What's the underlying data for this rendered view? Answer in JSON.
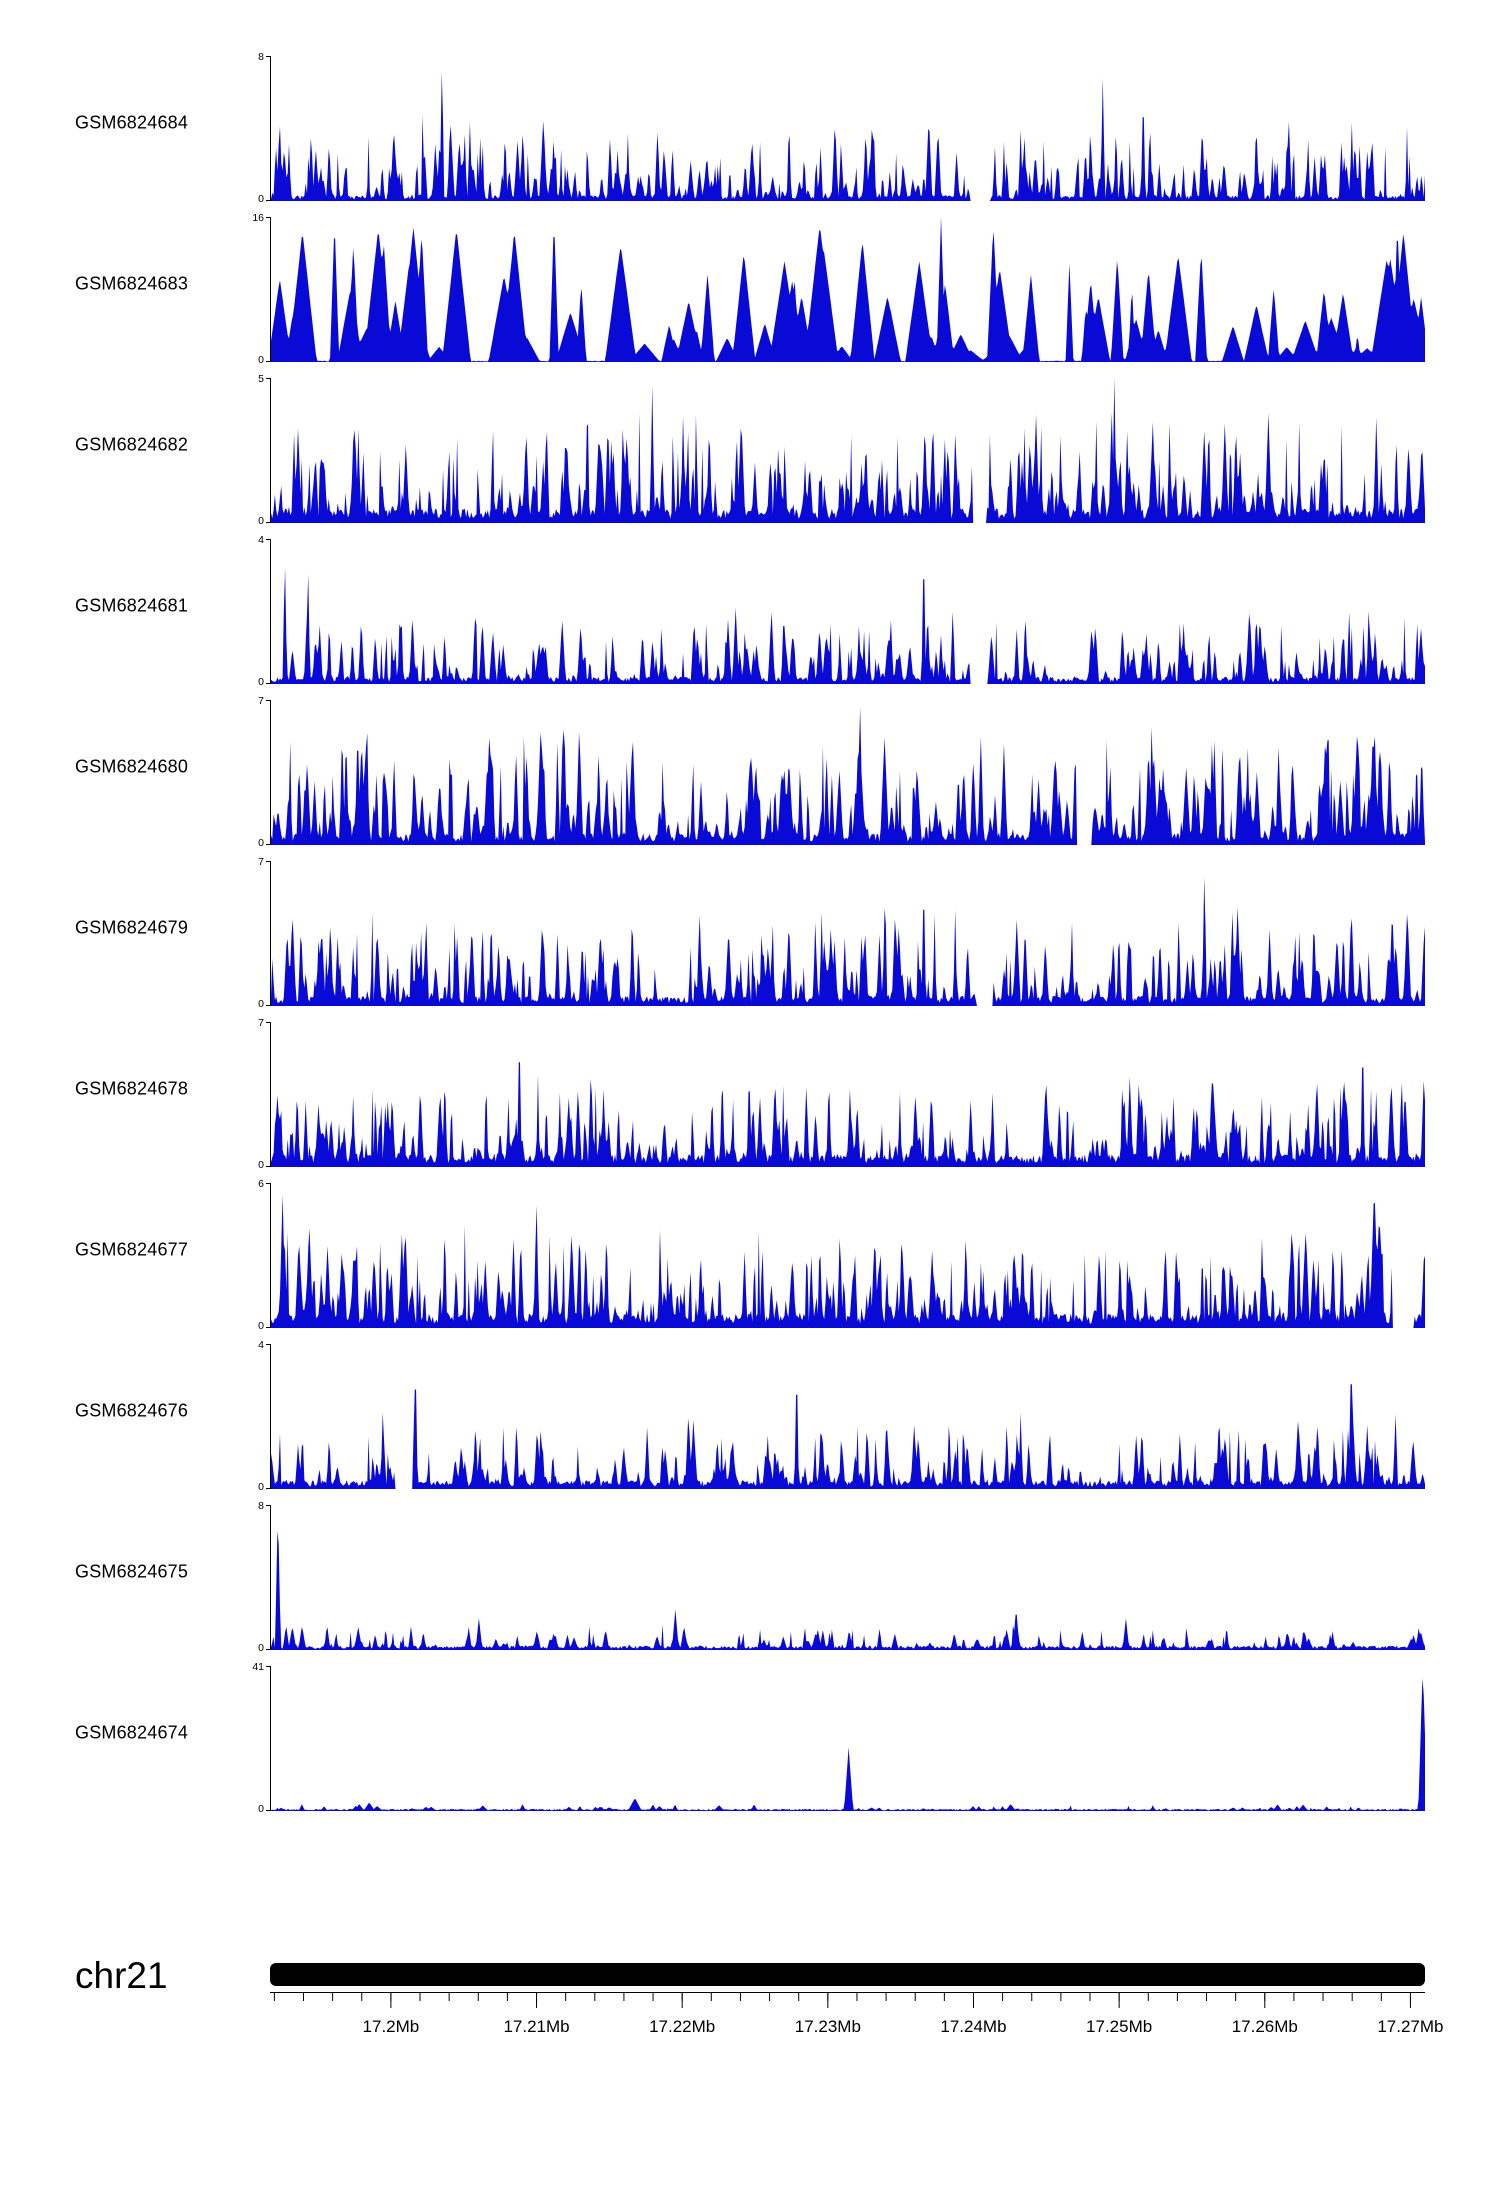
{
  "colors": {
    "signal": "#0a0ad6",
    "axis": "#000000",
    "ideogram": "#000000",
    "background": "#ffffff"
  },
  "chart_data": {
    "type": "area",
    "title": "",
    "description": "Genome-browser read coverage tracks (11 GEO samples) over chr21, filled blue area signal per sample",
    "legend": "none",
    "grid": false,
    "axis": {
      "chrom_label": "chr21",
      "unit": "Mb",
      "start": 17.1917,
      "end": 17.271,
      "minor_step": 0.002,
      "major_ticks": [
        {
          "value": 17.2,
          "label": "17.2Mb"
        },
        {
          "value": 17.21,
          "label": "17.21Mb"
        },
        {
          "value": 17.22,
          "label": "17.22Mb"
        },
        {
          "value": 17.23,
          "label": "17.23Mb"
        },
        {
          "value": 17.24,
          "label": "17.24Mb"
        },
        {
          "value": 17.25,
          "label": "17.25Mb"
        },
        {
          "value": 17.26,
          "label": "17.26Mb"
        },
        {
          "value": 17.27,
          "label": "17.27Mb"
        }
      ]
    },
    "tracks": [
      {
        "label": "GSM6824684",
        "ymin": 0,
        "ymax": 8,
        "seed": 11684,
        "gen": {
          "peaks": 380,
          "wmin": 0.0006,
          "wmax": 0.0035,
          "hmin": 0.05,
          "hmax": 1.0,
          "hpow": 2.0,
          "amp": 0.6,
          "base": 0.04,
          "spikes": [
            {
              "pos": 0.148,
              "h": 1.0,
              "w": 0.002
            },
            {
              "pos": 0.72,
              "h": 0.85,
              "w": 0.002
            },
            {
              "pos": 0.755,
              "h": 0.8,
              "w": 0.002
            }
          ],
          "gaps": [
            [
              0.606,
              0.622
            ]
          ]
        }
      },
      {
        "label": "GSM6824683",
        "ymin": 0,
        "ymax": 16,
        "seed": 21683,
        "gen": {
          "peaks": 110,
          "wmin": 0.003,
          "wmax": 0.014,
          "hmin": 0.08,
          "hmax": 1.0,
          "hpow": 1.6,
          "amp": 0.95,
          "base": 0.01,
          "spikes": [
            {
              "pos": 0.055,
              "h": 0.99,
              "w": 0.004
            },
            {
              "pos": 0.245,
              "h": 1.0,
              "w": 0.004
            },
            {
              "pos": 0.58,
              "h": 1.0,
              "w": 0.004
            },
            {
              "pos": 0.975,
              "h": 0.97,
              "w": 0.004
            }
          ],
          "gaps": []
        }
      },
      {
        "label": "GSM6824682",
        "ymin": 0,
        "ymax": 5,
        "seed": 31682,
        "gen": {
          "peaks": 420,
          "wmin": 0.0006,
          "wmax": 0.0035,
          "hmin": 0.08,
          "hmax": 1.0,
          "hpow": 1.9,
          "amp": 0.8,
          "base": 0.1,
          "spikes": [
            {
              "pos": 0.73,
              "h": 1.0,
              "w": 0.002
            },
            {
              "pos": 0.33,
              "h": 0.95,
              "w": 0.002
            }
          ],
          "gaps": [
            [
              0.608,
              0.618
            ]
          ]
        }
      },
      {
        "label": "GSM6824681",
        "ymin": 0,
        "ymax": 4,
        "seed": 41681,
        "gen": {
          "peaks": 360,
          "wmin": 0.0006,
          "wmax": 0.0035,
          "hmin": 0.05,
          "hmax": 1.0,
          "hpow": 2.1,
          "amp": 0.55,
          "base": 0.05,
          "spikes": [
            {
              "pos": 0.565,
              "h": 1.0,
              "w": 0.002
            },
            {
              "pos": 0.012,
              "h": 0.9,
              "w": 0.002
            },
            {
              "pos": 0.032,
              "h": 0.85,
              "w": 0.002
            }
          ],
          "gaps": [
            [
              0.606,
              0.62
            ]
          ]
        }
      },
      {
        "label": "GSM6824680",
        "ymin": 0,
        "ymax": 7,
        "seed": 51680,
        "gen": {
          "peaks": 400,
          "wmin": 0.0007,
          "wmax": 0.004,
          "hmin": 0.1,
          "hmax": 1.0,
          "hpow": 1.8,
          "amp": 0.85,
          "base": 0.08,
          "spikes": [
            {
              "pos": 0.915,
              "h": 1.0,
              "w": 0.002
            },
            {
              "pos": 0.51,
              "h": 0.95,
              "w": 0.002
            },
            {
              "pos": 0.075,
              "h": 0.9,
              "w": 0.002
            }
          ],
          "gaps": [
            [
              0.698,
              0.71
            ]
          ]
        }
      },
      {
        "label": "GSM6824679",
        "ymin": 0,
        "ymax": 7,
        "seed": 61679,
        "gen": {
          "peaks": 380,
          "wmin": 0.0006,
          "wmax": 0.0035,
          "hmin": 0.07,
          "hmax": 1.0,
          "hpow": 2.0,
          "amp": 0.7,
          "base": 0.07,
          "spikes": [
            {
              "pos": 0.808,
              "h": 1.0,
              "w": 0.002
            },
            {
              "pos": 0.565,
              "h": 0.92,
              "w": 0.002
            }
          ],
          "gaps": [
            [
              0.612,
              0.624
            ]
          ]
        }
      },
      {
        "label": "GSM6824678",
        "ymin": 0,
        "ymax": 7,
        "seed": 71678,
        "gen": {
          "peaks": 390,
          "wmin": 0.0006,
          "wmax": 0.0035,
          "hmin": 0.08,
          "hmax": 1.0,
          "hpow": 2.0,
          "amp": 0.7,
          "base": 0.09,
          "spikes": [
            {
              "pos": 0.215,
              "h": 1.0,
              "w": 0.002
            },
            {
              "pos": 0.945,
              "h": 0.95,
              "w": 0.002
            }
          ],
          "gaps": []
        }
      },
      {
        "label": "GSM6824677",
        "ymin": 0,
        "ymax": 6,
        "seed": 81677,
        "gen": {
          "peaks": 400,
          "wmin": 0.0006,
          "wmax": 0.0035,
          "hmin": 0.08,
          "hmax": 1.0,
          "hpow": 1.9,
          "amp": 0.75,
          "base": 0.1,
          "spikes": [
            {
              "pos": 0.955,
              "h": 1.0,
              "w": 0.004
            },
            {
              "pos": 0.01,
              "h": 0.92,
              "w": 0.003
            },
            {
              "pos": 0.23,
              "h": 0.85,
              "w": 0.002
            }
          ],
          "gaps": [
            [
              0.972,
              0.988
            ]
          ]
        }
      },
      {
        "label": "GSM6824676",
        "ymin": 0,
        "ymax": 4,
        "seed": 91676,
        "gen": {
          "peaks": 360,
          "wmin": 0.0006,
          "wmax": 0.0035,
          "hmin": 0.05,
          "hmax": 1.0,
          "hpow": 2.1,
          "amp": 0.55,
          "base": 0.06,
          "spikes": [
            {
              "pos": 0.125,
              "h": 0.95,
              "w": 0.002
            },
            {
              "pos": 0.455,
              "h": 0.9,
              "w": 0.002
            },
            {
              "pos": 0.935,
              "h": 1.0,
              "w": 0.002
            }
          ],
          "gaps": [
            [
              0.108,
              0.122
            ]
          ]
        }
      },
      {
        "label": "GSM6824675",
        "ymin": 0,
        "ymax": 8,
        "seed": 10675,
        "gen": {
          "peaks": 200,
          "wmin": 0.0008,
          "wmax": 0.004,
          "hmin": 0.03,
          "hmax": 1.0,
          "hpow": 1.5,
          "amp": 0.18,
          "base": 0.03,
          "spikes": [
            {
              "pos": 0.006,
              "h": 1.0,
              "w": 0.0025
            },
            {
              "pos": 0.18,
              "h": 0.22,
              "w": 0.003
            },
            {
              "pos": 0.35,
              "h": 0.28,
              "w": 0.003
            },
            {
              "pos": 0.645,
              "h": 0.3,
              "w": 0.003
            },
            {
              "pos": 0.74,
              "h": 0.22,
              "w": 0.003
            }
          ],
          "gaps": []
        }
      },
      {
        "label": "GSM6824674",
        "ymin": 0,
        "ymax": 41,
        "seed": 11674,
        "gen": {
          "peaks": 120,
          "wmin": 0.001,
          "wmax": 0.005,
          "hmin": 0.02,
          "hmax": 1.0,
          "hpow": 1.6,
          "amp": 0.05,
          "base": 0.015,
          "spikes": [
            {
              "pos": 0.5,
              "h": 0.44,
              "w": 0.004
            },
            {
              "pos": 0.997,
              "h": 1.0,
              "w": 0.004
            },
            {
              "pos": 0.315,
              "h": 0.09,
              "w": 0.006
            },
            {
              "pos": 0.085,
              "h": 0.06,
              "w": 0.005
            }
          ],
          "gaps": []
        }
      }
    ]
  }
}
